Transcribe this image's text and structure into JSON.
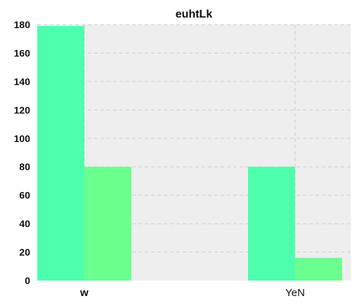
{
  "chart_data": {
    "type": "bar",
    "title": "euhtLk",
    "xlabel": "",
    "ylabel": "",
    "categories": [
      "w",
      "YeN"
    ],
    "category_label_weight": [
      "bold",
      "normal"
    ],
    "series": [
      {
        "values": [
          179,
          80
        ],
        "color": "#4dffad"
      },
      {
        "values": [
          80,
          16
        ],
        "color": "#6aff8f"
      }
    ],
    "ylim": [
      0,
      180
    ],
    "yticks": [
      0,
      20,
      40,
      60,
      80,
      100,
      120,
      140,
      160,
      180
    ],
    "grid": true,
    "plot_background": "#eeeeee",
    "grid_color": "#cccccc"
  }
}
